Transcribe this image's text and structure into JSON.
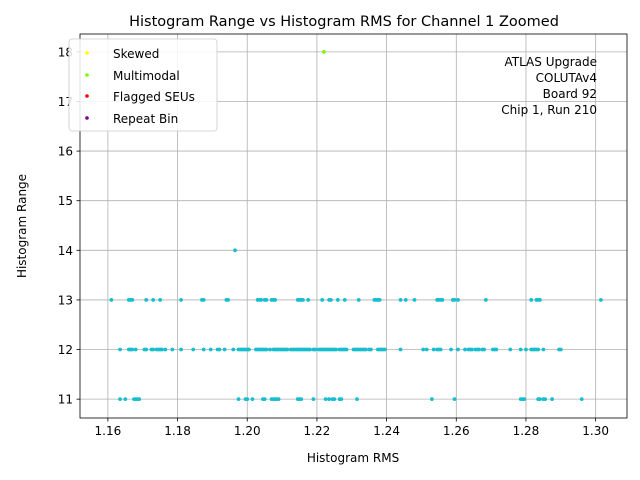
{
  "chart_data": {
    "type": "scatter",
    "title": "Histogram Range vs Histogram RMS for Channel 1 Zoomed",
    "xlabel": "Histogram RMS",
    "ylabel": "Histogram Range",
    "xlim": [
      1.152,
      1.309
    ],
    "ylim": [
      10.62,
      18.36
    ],
    "x_ticks": [
      1.16,
      1.18,
      1.2,
      1.22,
      1.24,
      1.26,
      1.28,
      1.3
    ],
    "x_tick_labels": [
      "1.16",
      "1.18",
      "1.20",
      "1.22",
      "1.24",
      "1.26",
      "1.28",
      "1.30"
    ],
    "y_ticks": [
      11,
      12,
      13,
      14,
      15,
      16,
      17,
      18
    ],
    "y_tick_labels": [
      "11",
      "12",
      "13",
      "14",
      "15",
      "16",
      "17",
      "18"
    ],
    "grid": true,
    "legend_position": "top-left",
    "legend": [
      {
        "label": "Skewed",
        "color": "#ffff00"
      },
      {
        "label": "Multimodal",
        "color": "#7cfc00"
      },
      {
        "label": "Flagged SEUs",
        "color": "#ff0000"
      },
      {
        "label": "Repeat Bin",
        "color": "#800080"
      }
    ],
    "annotation": [
      "ATLAS Upgrade",
      "COLUTAv4",
      " Board 92",
      "Chip 1, Run 210"
    ],
    "series": [
      {
        "color": "#17becf",
        "points": [
          [
            1.161,
            13
          ],
          [
            1.166,
            13
          ],
          [
            1.1665,
            13
          ],
          [
            1.167,
            13
          ],
          [
            1.171,
            13
          ],
          [
            1.173,
            13
          ],
          [
            1.175,
            13
          ],
          [
            1.181,
            13
          ],
          [
            1.187,
            13
          ],
          [
            1.1875,
            13
          ],
          [
            1.194,
            13
          ],
          [
            1.1945,
            13
          ],
          [
            1.203,
            13
          ],
          [
            1.2035,
            13
          ],
          [
            1.204,
            13
          ],
          [
            1.205,
            13
          ],
          [
            1.2055,
            13
          ],
          [
            1.207,
            13
          ],
          [
            1.2075,
            13
          ],
          [
            1.208,
            13
          ],
          [
            1.2145,
            13
          ],
          [
            1.215,
            13
          ],
          [
            1.2155,
            13
          ],
          [
            1.216,
            13
          ],
          [
            1.2175,
            13
          ],
          [
            1.2215,
            13
          ],
          [
            1.2235,
            13
          ],
          [
            1.224,
            13
          ],
          [
            1.226,
            13
          ],
          [
            1.228,
            13
          ],
          [
            1.232,
            13
          ],
          [
            1.2365,
            13
          ],
          [
            1.237,
            13
          ],
          [
            1.2375,
            13
          ],
          [
            1.238,
            13
          ],
          [
            1.244,
            13
          ],
          [
            1.2455,
            13
          ],
          [
            1.248,
            13
          ],
          [
            1.2545,
            13
          ],
          [
            1.255,
            13
          ],
          [
            1.2555,
            13
          ],
          [
            1.256,
            13
          ],
          [
            1.259,
            13
          ],
          [
            1.2595,
            13
          ],
          [
            1.2605,
            13
          ],
          [
            1.2685,
            13
          ],
          [
            1.2815,
            13
          ],
          [
            1.283,
            13
          ],
          [
            1.2835,
            13
          ],
          [
            1.284,
            13
          ],
          [
            1.3015,
            13
          ],
          [
            1.1635,
            12
          ],
          [
            1.166,
            12
          ],
          [
            1.1665,
            12
          ],
          [
            1.167,
            12
          ],
          [
            1.168,
            12
          ],
          [
            1.1705,
            12
          ],
          [
            1.171,
            12
          ],
          [
            1.1725,
            12
          ],
          [
            1.173,
            12
          ],
          [
            1.174,
            12
          ],
          [
            1.1745,
            12
          ],
          [
            1.175,
            12
          ],
          [
            1.1755,
            12
          ],
          [
            1.1765,
            12
          ],
          [
            1.1785,
            12
          ],
          [
            1.181,
            12
          ],
          [
            1.1845,
            12
          ],
          [
            1.1875,
            12
          ],
          [
            1.1895,
            12
          ],
          [
            1.1915,
            12
          ],
          [
            1.192,
            12
          ],
          [
            1.1935,
            12
          ],
          [
            1.196,
            12
          ],
          [
            1.1975,
            12
          ],
          [
            1.198,
            12
          ],
          [
            1.1985,
            12
          ],
          [
            1.199,
            12
          ],
          [
            1.1995,
            12
          ],
          [
            1.2,
            12
          ],
          [
            1.2005,
            12
          ],
          [
            1.2025,
            12
          ],
          [
            1.203,
            12
          ],
          [
            1.2035,
            12
          ],
          [
            1.204,
            12
          ],
          [
            1.2045,
            12
          ],
          [
            1.205,
            12
          ],
          [
            1.2055,
            12
          ],
          [
            1.2065,
            12
          ],
          [
            1.2075,
            12
          ],
          [
            1.208,
            12
          ],
          [
            1.2085,
            12
          ],
          [
            1.209,
            12
          ],
          [
            1.2095,
            12
          ],
          [
            1.21,
            12
          ],
          [
            1.2105,
            12
          ],
          [
            1.211,
            12
          ],
          [
            1.2115,
            12
          ],
          [
            1.2125,
            12
          ],
          [
            1.213,
            12
          ],
          [
            1.2135,
            12
          ],
          [
            1.214,
            12
          ],
          [
            1.2145,
            12
          ],
          [
            1.215,
            12
          ],
          [
            1.2155,
            12
          ],
          [
            1.216,
            12
          ],
          [
            1.2165,
            12
          ],
          [
            1.217,
            12
          ],
          [
            1.2175,
            12
          ],
          [
            1.218,
            12
          ],
          [
            1.219,
            12
          ],
          [
            1.2195,
            12
          ],
          [
            1.2205,
            12
          ],
          [
            1.221,
            12
          ],
          [
            1.2215,
            12
          ],
          [
            1.222,
            12
          ],
          [
            1.2225,
            12
          ],
          [
            1.223,
            12
          ],
          [
            1.2235,
            12
          ],
          [
            1.224,
            12
          ],
          [
            1.2245,
            12
          ],
          [
            1.225,
            12
          ],
          [
            1.2255,
            12
          ],
          [
            1.2265,
            12
          ],
          [
            1.227,
            12
          ],
          [
            1.2275,
            12
          ],
          [
            1.228,
            12
          ],
          [
            1.2285,
            12
          ],
          [
            1.2305,
            12
          ],
          [
            1.231,
            12
          ],
          [
            1.2315,
            12
          ],
          [
            1.232,
            12
          ],
          [
            1.2325,
            12
          ],
          [
            1.233,
            12
          ],
          [
            1.2335,
            12
          ],
          [
            1.234,
            12
          ],
          [
            1.235,
            12
          ],
          [
            1.2355,
            12
          ],
          [
            1.2375,
            12
          ],
          [
            1.238,
            12
          ],
          [
            1.2385,
            12
          ],
          [
            1.239,
            12
          ],
          [
            1.2395,
            12
          ],
          [
            1.244,
            12
          ],
          [
            1.2505,
            12
          ],
          [
            1.2515,
            12
          ],
          [
            1.2535,
            12
          ],
          [
            1.2545,
            12
          ],
          [
            1.255,
            12
          ],
          [
            1.2555,
            12
          ],
          [
            1.2585,
            12
          ],
          [
            1.2605,
            12
          ],
          [
            1.2625,
            12
          ],
          [
            1.2635,
            12
          ],
          [
            1.264,
            12
          ],
          [
            1.2645,
            12
          ],
          [
            1.2655,
            12
          ],
          [
            1.266,
            12
          ],
          [
            1.2665,
            12
          ],
          [
            1.2675,
            12
          ],
          [
            1.268,
            12
          ],
          [
            1.2705,
            12
          ],
          [
            1.271,
            12
          ],
          [
            1.2715,
            12
          ],
          [
            1.2755,
            12
          ],
          [
            1.2785,
            12
          ],
          [
            1.28,
            12
          ],
          [
            1.2815,
            12
          ],
          [
            1.282,
            12
          ],
          [
            1.2825,
            12
          ],
          [
            1.283,
            12
          ],
          [
            1.2835,
            12
          ],
          [
            1.285,
            12
          ],
          [
            1.2895,
            12
          ],
          [
            1.29,
            12
          ],
          [
            1.1635,
            11
          ],
          [
            1.165,
            11
          ],
          [
            1.1675,
            11
          ],
          [
            1.168,
            11
          ],
          [
            1.1685,
            11
          ],
          [
            1.169,
            11
          ],
          [
            1.1975,
            11
          ],
          [
            1.1995,
            11
          ],
          [
            1.2,
            11
          ],
          [
            1.2015,
            11
          ],
          [
            1.2045,
            11
          ],
          [
            1.205,
            11
          ],
          [
            1.207,
            11
          ],
          [
            1.2075,
            11
          ],
          [
            1.208,
            11
          ],
          [
            1.2085,
            11
          ],
          [
            1.209,
            11
          ],
          [
            1.2145,
            11
          ],
          [
            1.215,
            11
          ],
          [
            1.2155,
            11
          ],
          [
            1.219,
            11
          ],
          [
            1.2225,
            11
          ],
          [
            1.2235,
            11
          ],
          [
            1.2245,
            11
          ],
          [
            1.225,
            11
          ],
          [
            1.2265,
            11
          ],
          [
            1.227,
            11
          ],
          [
            1.2315,
            11
          ],
          [
            1.253,
            11
          ],
          [
            1.2595,
            11
          ],
          [
            1.2785,
            11
          ],
          [
            1.279,
            11
          ],
          [
            1.2795,
            11
          ],
          [
            1.2835,
            11
          ],
          [
            1.284,
            11
          ],
          [
            1.285,
            11
          ],
          [
            1.2855,
            11
          ],
          [
            1.2875,
            11
          ],
          [
            1.296,
            11
          ],
          [
            1.1965,
            14
          ]
        ]
      },
      {
        "color": "#7cfc00",
        "points": [
          [
            1.222,
            18
          ]
        ]
      }
    ]
  }
}
